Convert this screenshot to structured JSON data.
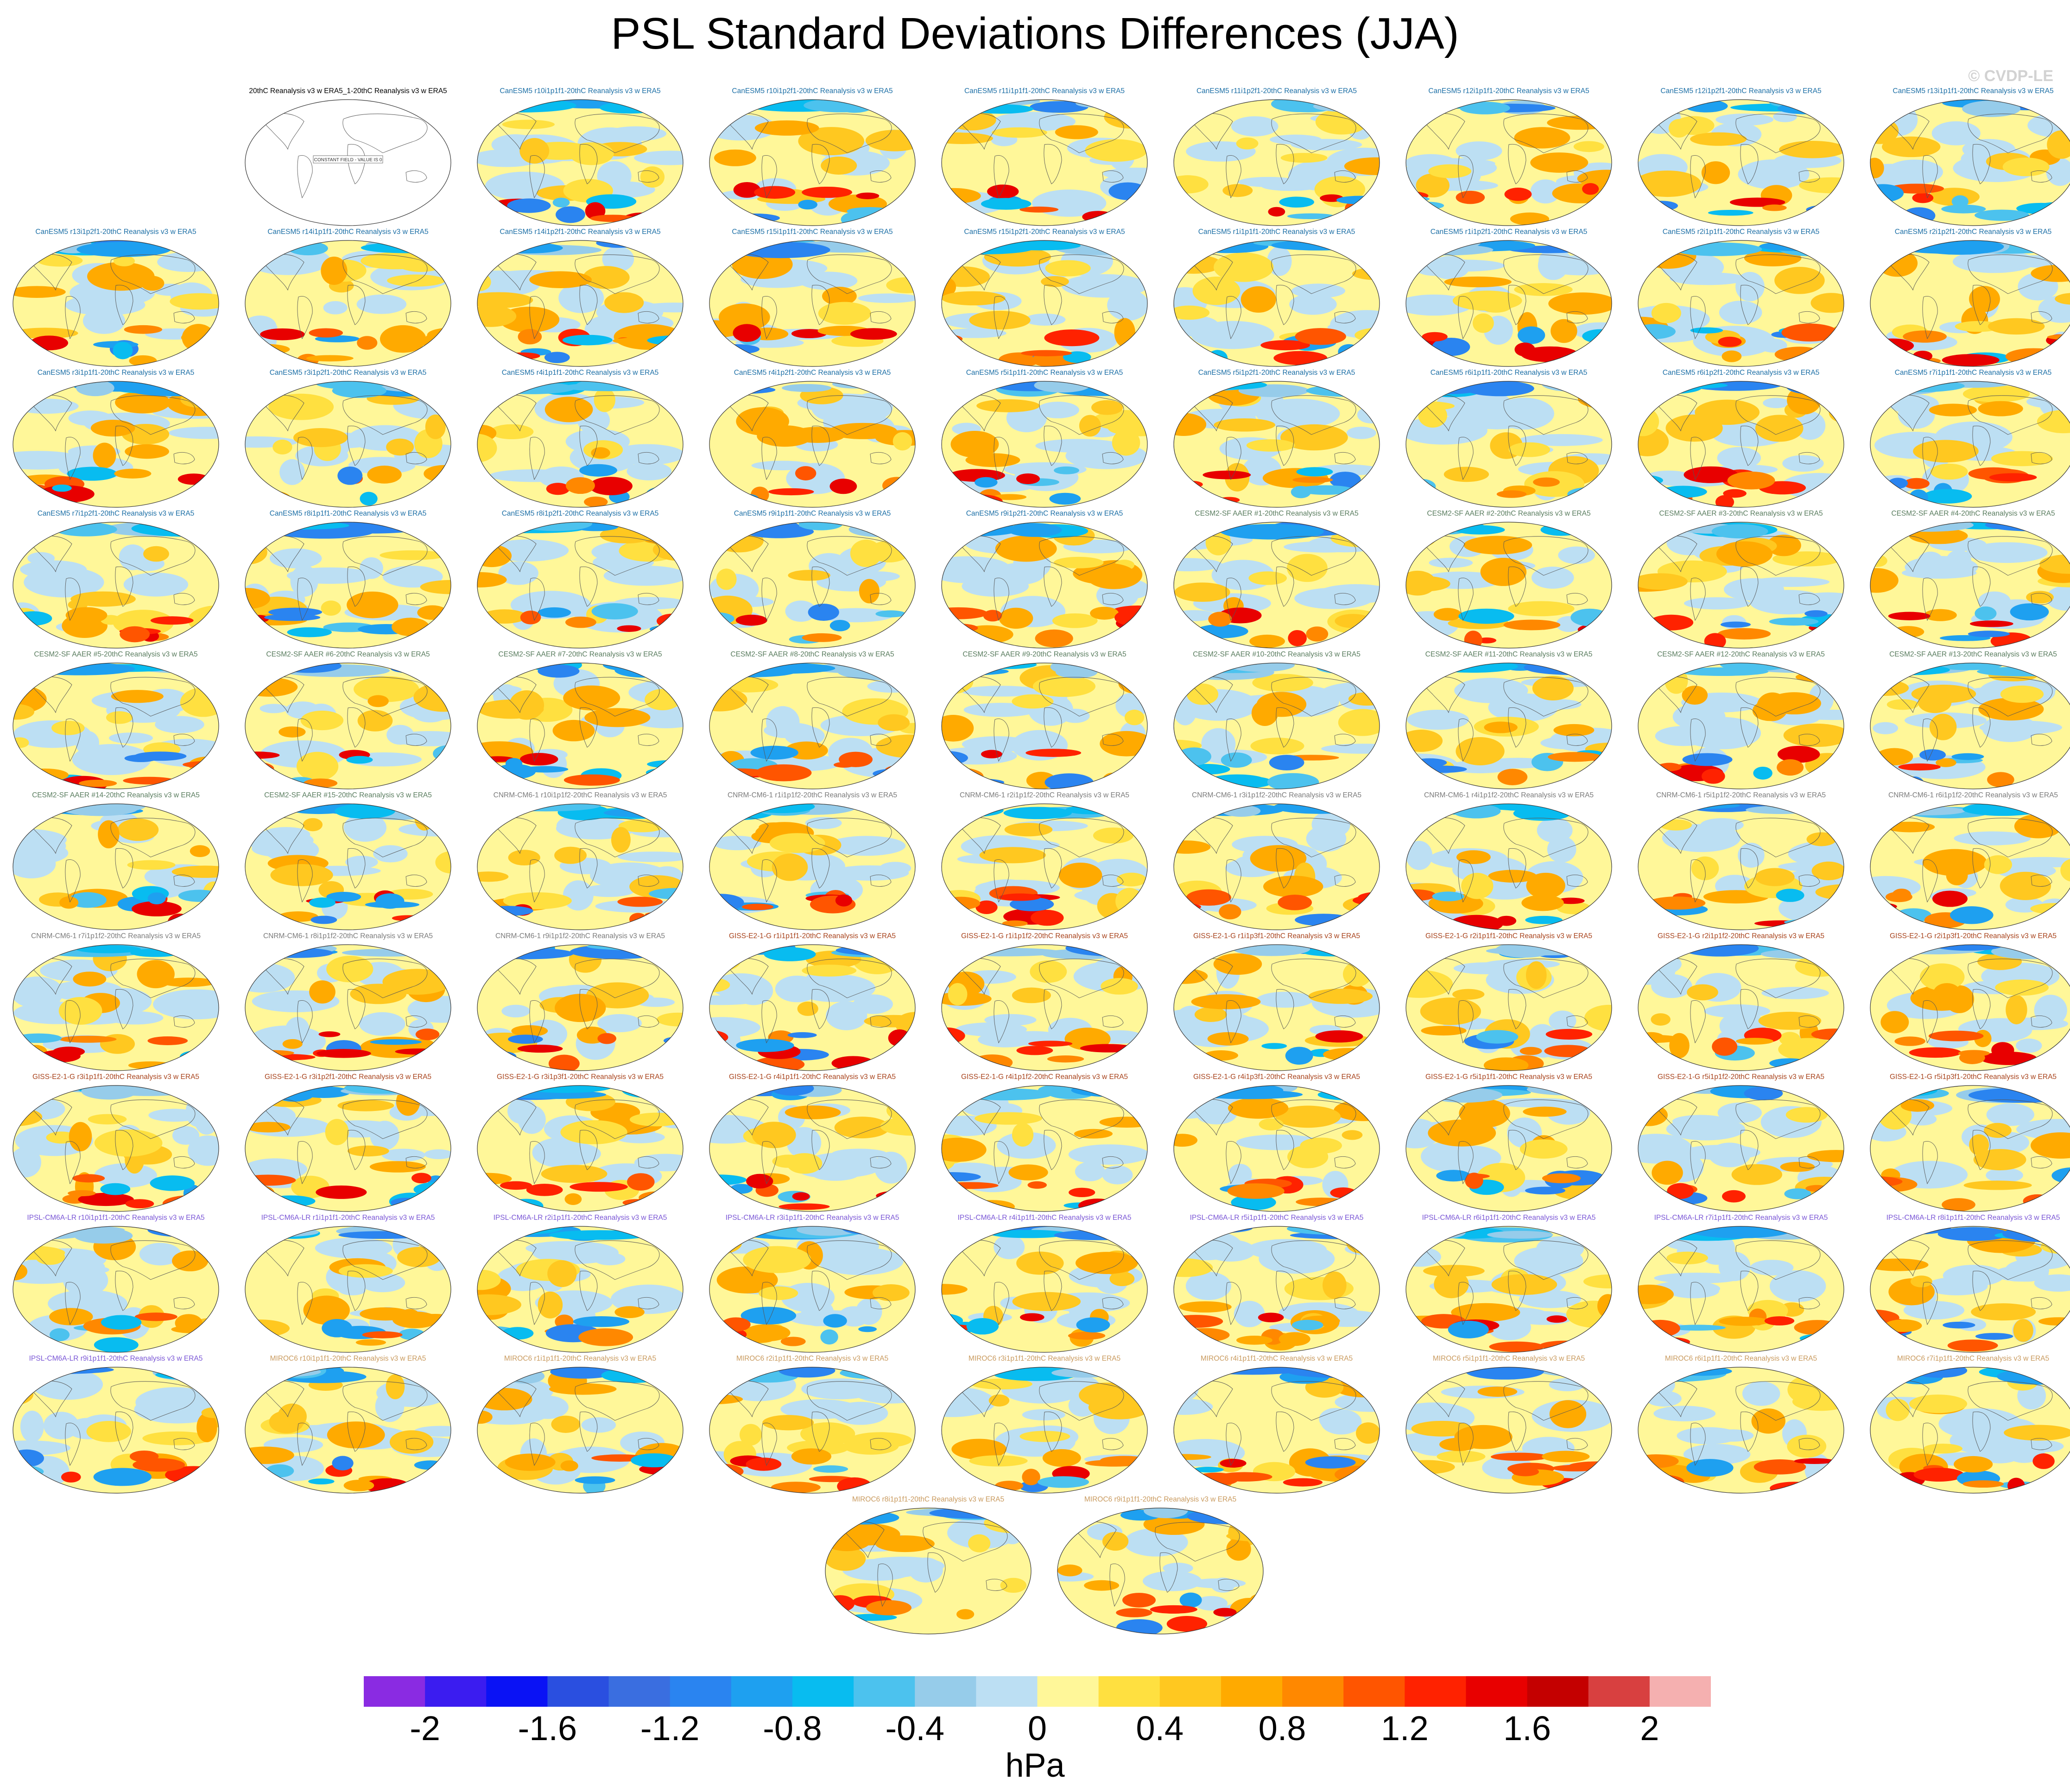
{
  "title": "PSL Standard Deviations Differences (JJA)",
  "watermark": "© CVDP-LE",
  "colors": {
    "CanESM5": "#1c6fa6",
    "CESM2-SF": "#5a7d5f",
    "CNRM-CM6-1": "#7b7b7b",
    "GISS-E2-1-G": "#a8431c",
    "IPSL-CM6A-LR": "#7a56d6",
    "MIROC6": "#c99a5e",
    "obs": "#000000"
  },
  "chart_data": {
    "type": "map",
    "projection": "Robinson",
    "constant_field_label": "CONSTANT FIELD - VALUE IS 0",
    "panels": [
      {
        "title": "20thC Reanalysis v3 w ERA5_1-20thC Reanalysis v3 w ERA5",
        "group": "obs",
        "constant": true
      },
      {
        "title": "CanESM5 r10i1p1f1-20thC Reanalysis v3 w ERA5",
        "group": "CanESM5"
      },
      {
        "title": "CanESM5 r10i1p2f1-20thC Reanalysis v3 w ERA5",
        "group": "CanESM5"
      },
      {
        "title": "CanESM5 r11i1p1f1-20thC Reanalysis v3 w ERA5",
        "group": "CanESM5"
      },
      {
        "title": "CanESM5 r11i1p2f1-20thC Reanalysis v3 w ERA5",
        "group": "CanESM5"
      },
      {
        "title": "CanESM5 r12i1p1f1-20thC Reanalysis v3 w ERA5",
        "group": "CanESM5"
      },
      {
        "title": "CanESM5 r12i1p2f1-20thC Reanalysis v3 w ERA5",
        "group": "CanESM5"
      },
      {
        "title": "CanESM5 r13i1p1f1-20thC Reanalysis v3 w ERA5",
        "group": "CanESM5"
      },
      {
        "title": "CanESM5 r13i1p2f1-20thC Reanalysis v3 w ERA5",
        "group": "CanESM5"
      },
      {
        "title": "CanESM5 r14i1p1f1-20thC Reanalysis v3 w ERA5",
        "group": "CanESM5"
      },
      {
        "title": "CanESM5 r14i1p2f1-20thC Reanalysis v3 w ERA5",
        "group": "CanESM5"
      },
      {
        "title": "CanESM5 r15i1p1f1-20thC Reanalysis v3 w ERA5",
        "group": "CanESM5"
      },
      {
        "title": "CanESM5 r15i1p2f1-20thC Reanalysis v3 w ERA5",
        "group": "CanESM5"
      },
      {
        "title": "CanESM5 r1i1p1f1-20thC Reanalysis v3 w ERA5",
        "group": "CanESM5"
      },
      {
        "title": "CanESM5 r1i1p2f1-20thC Reanalysis v3 w ERA5",
        "group": "CanESM5"
      },
      {
        "title": "CanESM5 r2i1p1f1-20thC Reanalysis v3 w ERA5",
        "group": "CanESM5"
      },
      {
        "title": "CanESM5 r2i1p2f1-20thC Reanalysis v3 w ERA5",
        "group": "CanESM5"
      },
      {
        "title": "CanESM5 r3i1p1f1-20thC Reanalysis v3 w ERA5",
        "group": "CanESM5"
      },
      {
        "title": "CanESM5 r3i1p2f1-20thC Reanalysis v3 w ERA5",
        "group": "CanESM5"
      },
      {
        "title": "CanESM5 r4i1p1f1-20thC Reanalysis v3 w ERA5",
        "group": "CanESM5"
      },
      {
        "title": "CanESM5 r4i1p2f1-20thC Reanalysis v3 w ERA5",
        "group": "CanESM5"
      },
      {
        "title": "CanESM5 r5i1p1f1-20thC Reanalysis v3 w ERA5",
        "group": "CanESM5"
      },
      {
        "title": "CanESM5 r5i1p2f1-20thC Reanalysis v3 w ERA5",
        "group": "CanESM5"
      },
      {
        "title": "CanESM5 r6i1p1f1-20thC Reanalysis v3 w ERA5",
        "group": "CanESM5"
      },
      {
        "title": "CanESM5 r6i1p2f1-20thC Reanalysis v3 w ERA5",
        "group": "CanESM5"
      },
      {
        "title": "CanESM5 r7i1p1f1-20thC Reanalysis v3 w ERA5",
        "group": "CanESM5"
      },
      {
        "title": "CanESM5 r7i1p2f1-20thC Reanalysis v3 w ERA5",
        "group": "CanESM5"
      },
      {
        "title": "CanESM5 r8i1p1f1-20thC Reanalysis v3 w ERA5",
        "group": "CanESM5"
      },
      {
        "title": "CanESM5 r8i1p2f1-20thC Reanalysis v3 w ERA5",
        "group": "CanESM5"
      },
      {
        "title": "CanESM5 r9i1p1f1-20thC Reanalysis v3 w ERA5",
        "group": "CanESM5"
      },
      {
        "title": "CanESM5 r9i1p2f1-20thC Reanalysis v3 w ERA5",
        "group": "CanESM5"
      },
      {
        "title": "CESM2-SF AAER #1-20thC Reanalysis v3 w ERA5",
        "group": "CESM2-SF"
      },
      {
        "title": "CESM2-SF AAER #2-20thC Reanalysis v3 w ERA5",
        "group": "CESM2-SF"
      },
      {
        "title": "CESM2-SF AAER #3-20thC Reanalysis v3 w ERA5",
        "group": "CESM2-SF"
      },
      {
        "title": "CESM2-SF AAER #4-20thC Reanalysis v3 w ERA5",
        "group": "CESM2-SF"
      },
      {
        "title": "CESM2-SF AAER #5-20thC Reanalysis v3 w ERA5",
        "group": "CESM2-SF"
      },
      {
        "title": "CESM2-SF AAER #6-20thC Reanalysis v3 w ERA5",
        "group": "CESM2-SF"
      },
      {
        "title": "CESM2-SF AAER #7-20thC Reanalysis v3 w ERA5",
        "group": "CESM2-SF"
      },
      {
        "title": "CESM2-SF AAER #8-20thC Reanalysis v3 w ERA5",
        "group": "CESM2-SF"
      },
      {
        "title": "CESM2-SF AAER #9-20thC Reanalysis v3 w ERA5",
        "group": "CESM2-SF"
      },
      {
        "title": "CESM2-SF AAER #10-20thC Reanalysis v3 w ERA5",
        "group": "CESM2-SF"
      },
      {
        "title": "CESM2-SF AAER #11-20thC Reanalysis v3 w ERA5",
        "group": "CESM2-SF"
      },
      {
        "title": "CESM2-SF AAER #12-20thC Reanalysis v3 w ERA5",
        "group": "CESM2-SF"
      },
      {
        "title": "CESM2-SF AAER #13-20thC Reanalysis v3 w ERA5",
        "group": "CESM2-SF"
      },
      {
        "title": "CESM2-SF AAER #14-20thC Reanalysis v3 w ERA5",
        "group": "CESM2-SF"
      },
      {
        "title": "CESM2-SF AAER #15-20thC Reanalysis v3 w ERA5",
        "group": "CESM2-SF"
      },
      {
        "title": "CNRM-CM6-1 r10i1p1f2-20thC Reanalysis v3 w ERA5",
        "group": "CNRM-CM6-1"
      },
      {
        "title": "CNRM-CM6-1 r1i1p1f2-20thC Reanalysis v3 w ERA5",
        "group": "CNRM-CM6-1"
      },
      {
        "title": "CNRM-CM6-1 r2i1p1f2-20thC Reanalysis v3 w ERA5",
        "group": "CNRM-CM6-1"
      },
      {
        "title": "CNRM-CM6-1 r3i1p1f2-20thC Reanalysis v3 w ERA5",
        "group": "CNRM-CM6-1"
      },
      {
        "title": "CNRM-CM6-1 r4i1p1f2-20thC Reanalysis v3 w ERA5",
        "group": "CNRM-CM6-1"
      },
      {
        "title": "CNRM-CM6-1 r5i1p1f2-20thC Reanalysis v3 w ERA5",
        "group": "CNRM-CM6-1"
      },
      {
        "title": "CNRM-CM6-1 r6i1p1f2-20thC Reanalysis v3 w ERA5",
        "group": "CNRM-CM6-1"
      },
      {
        "title": "CNRM-CM6-1 r7i1p1f2-20thC Reanalysis v3 w ERA5",
        "group": "CNRM-CM6-1"
      },
      {
        "title": "CNRM-CM6-1 r8i1p1f2-20thC Reanalysis v3 w ERA5",
        "group": "CNRM-CM6-1"
      },
      {
        "title": "CNRM-CM6-1 r9i1p1f2-20thC Reanalysis v3 w ERA5",
        "group": "CNRM-CM6-1"
      },
      {
        "title": "GISS-E2-1-G r1i1p1f1-20thC Reanalysis v3 w ERA5",
        "group": "GISS-E2-1-G"
      },
      {
        "title": "GISS-E2-1-G r1i1p1f2-20thC Reanalysis v3 w ERA5",
        "group": "GISS-E2-1-G"
      },
      {
        "title": "GISS-E2-1-G r1i1p3f1-20thC Reanalysis v3 w ERA5",
        "group": "GISS-E2-1-G"
      },
      {
        "title": "GISS-E2-1-G r2i1p1f1-20thC Reanalysis v3 w ERA5",
        "group": "GISS-E2-1-G"
      },
      {
        "title": "GISS-E2-1-G r2i1p1f2-20thC Reanalysis v3 w ERA5",
        "group": "GISS-E2-1-G"
      },
      {
        "title": "GISS-E2-1-G r2i1p3f1-20thC Reanalysis v3 w ERA5",
        "group": "GISS-E2-1-G"
      },
      {
        "title": "GISS-E2-1-G r3i1p1f1-20thC Reanalysis v3 w ERA5",
        "group": "GISS-E2-1-G"
      },
      {
        "title": "GISS-E2-1-G r3i1p2f1-20thC Reanalysis v3 w ERA5",
        "group": "GISS-E2-1-G"
      },
      {
        "title": "GISS-E2-1-G r3i1p3f1-20thC Reanalysis v3 w ERA5",
        "group": "GISS-E2-1-G"
      },
      {
        "title": "GISS-E2-1-G r4i1p1f1-20thC Reanalysis v3 w ERA5",
        "group": "GISS-E2-1-G"
      },
      {
        "title": "GISS-E2-1-G r4i1p1f2-20thC Reanalysis v3 w ERA5",
        "group": "GISS-E2-1-G"
      },
      {
        "title": "GISS-E2-1-G r4i1p3f1-20thC Reanalysis v3 w ERA5",
        "group": "GISS-E2-1-G"
      },
      {
        "title": "GISS-E2-1-G r5i1p1f1-20thC Reanalysis v3 w ERA5",
        "group": "GISS-E2-1-G"
      },
      {
        "title": "GISS-E2-1-G r5i1p1f2-20thC Reanalysis v3 w ERA5",
        "group": "GISS-E2-1-G"
      },
      {
        "title": "GISS-E2-1-G r5i1p3f1-20thC Reanalysis v3 w ERA5",
        "group": "GISS-E2-1-G"
      },
      {
        "title": "IPSL-CM6A-LR r10i1p1f1-20thC Reanalysis v3 w ERA5",
        "group": "IPSL-CM6A-LR"
      },
      {
        "title": "IPSL-CM6A-LR r1i1p1f1-20thC Reanalysis v3 w ERA5",
        "group": "IPSL-CM6A-LR"
      },
      {
        "title": "IPSL-CM6A-LR r2i1p1f1-20thC Reanalysis v3 w ERA5",
        "group": "IPSL-CM6A-LR"
      },
      {
        "title": "IPSL-CM6A-LR r3i1p1f1-20thC Reanalysis v3 w ERA5",
        "group": "IPSL-CM6A-LR"
      },
      {
        "title": "IPSL-CM6A-LR r4i1p1f1-20thC Reanalysis v3 w ERA5",
        "group": "IPSL-CM6A-LR"
      },
      {
        "title": "IPSL-CM6A-LR r5i1p1f1-20thC Reanalysis v3 w ERA5",
        "group": "IPSL-CM6A-LR"
      },
      {
        "title": "IPSL-CM6A-LR r6i1p1f1-20thC Reanalysis v3 w ERA5",
        "group": "IPSL-CM6A-LR"
      },
      {
        "title": "IPSL-CM6A-LR r7i1p1f1-20thC Reanalysis v3 w ERA5",
        "group": "IPSL-CM6A-LR"
      },
      {
        "title": "IPSL-CM6A-LR r8i1p1f1-20thC Reanalysis v3 w ERA5",
        "group": "IPSL-CM6A-LR"
      },
      {
        "title": "IPSL-CM6A-LR r9i1p1f1-20thC Reanalysis v3 w ERA5",
        "group": "IPSL-CM6A-LR"
      },
      {
        "title": "MIROC6 r10i1p1f1-20thC Reanalysis v3 w ERA5",
        "group": "MIROC6"
      },
      {
        "title": "MIROC6 r1i1p1f1-20thC Reanalysis v3 w ERA5",
        "group": "MIROC6"
      },
      {
        "title": "MIROC6 r2i1p1f1-20thC Reanalysis v3 w ERA5",
        "group": "MIROC6"
      },
      {
        "title": "MIROC6 r3i1p1f1-20thC Reanalysis v3 w ERA5",
        "group": "MIROC6"
      },
      {
        "title": "MIROC6 r4i1p1f1-20thC Reanalysis v3 w ERA5",
        "group": "MIROC6"
      },
      {
        "title": "MIROC6 r5i1p1f1-20thC Reanalysis v3 w ERA5",
        "group": "MIROC6"
      },
      {
        "title": "MIROC6 r6i1p1f1-20thC Reanalysis v3 w ERA5",
        "group": "MIROC6"
      },
      {
        "title": "MIROC6 r7i1p1f1-20thC Reanalysis v3 w ERA5",
        "group": "MIROC6"
      },
      {
        "title": "MIROC6 r8i1p1f1-20thC Reanalysis v3 w ERA5",
        "group": "MIROC6"
      },
      {
        "title": "MIROC6 r9i1p1f1-20thC Reanalysis v3 w ERA5",
        "group": "MIROC6"
      }
    ],
    "colorbar": {
      "levels": [
        -2,
        -1.8,
        -1.6,
        -1.4,
        -1.2,
        -1,
        -0.8,
        -0.6,
        -0.4,
        -0.2,
        0,
        0.2,
        0.4,
        0.6,
        0.8,
        1,
        1.2,
        1.4,
        1.6,
        1.8,
        2
      ],
      "colors": [
        "#8a2be2",
        "#3b1cf0",
        "#0a12f5",
        "#2a4fe0",
        "#3a6ee0",
        "#2a84f0",
        "#1ea0f0",
        "#08bcf0",
        "#4cc2ee",
        "#96ccea",
        "#bcdff3",
        "#fff799",
        "#ffe040",
        "#ffc820",
        "#ffaa00",
        "#ff8800",
        "#ff5500",
        "#ff2200",
        "#e80000",
        "#c40000",
        "#d84040",
        "#f5b0b0"
      ],
      "tick_labels": [
        "-2",
        "-1.6",
        "-1.2",
        "-0.8",
        "-0.4",
        "0",
        "0.4",
        "0.8",
        "1.2",
        "1.6",
        "2"
      ],
      "unit": "hPa"
    }
  }
}
